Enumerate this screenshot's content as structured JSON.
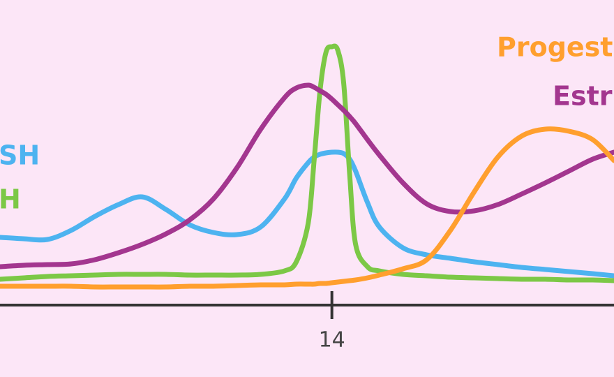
{
  "chart_data": {
    "type": "line",
    "x": [
      0,
      1,
      2,
      3,
      4,
      5,
      6,
      7,
      8,
      9,
      10,
      11,
      12,
      12.5,
      13,
      13.25,
      13.5,
      13.75,
      14,
      14.25,
      14.5,
      14.75,
      15,
      15.5,
      16,
      17,
      18,
      19,
      20,
      21,
      22,
      23,
      24,
      25,
      25.9
    ],
    "xlim": [
      0,
      25.9
    ],
    "xticks": [
      14
    ],
    "ylim": [
      0,
      100
    ],
    "series": [
      {
        "name": "SH",
        "color": "#4db3f0",
        "values": [
          24.25,
          23.75,
          23.5,
          26.75,
          31.75,
          36,
          38.75,
          34.25,
          28.75,
          26,
          25.25,
          28,
          38,
          45.5,
          51,
          53,
          54,
          54.5,
          54.75,
          54.75,
          54.25,
          52.25,
          48,
          36.75,
          28,
          20.5,
          18,
          16.75,
          15.5,
          14.5,
          13.5,
          12.75,
          12,
          11.25,
          10.5
        ]
      },
      {
        "name": "H",
        "color": "#7cc846",
        "values": [
          9.25,
          9.75,
          10.25,
          10.5,
          10.75,
          11,
          11,
          11,
          10.75,
          10.75,
          10.75,
          11,
          12.25,
          15.5,
          29.25,
          51.75,
          76.75,
          90.5,
          92.5,
          91.25,
          79.25,
          46.75,
          21.75,
          13.75,
          12.25,
          11,
          10.5,
          10,
          9.75,
          9.5,
          9.25,
          9.25,
          9,
          9,
          8.75
        ]
      },
      {
        "name": "Estr",
        "color": "#a3368f",
        "values": [
          13.75,
          14.25,
          14.5,
          14.75,
          16.25,
          18.75,
          21.75,
          25.5,
          30.5,
          38,
          49.25,
          63,
          74.25,
          77.75,
          78.75,
          78,
          76.75,
          75.5,
          73.75,
          71.75,
          69.75,
          67.5,
          65,
          59.25,
          53.75,
          43.75,
          36.25,
          33.5,
          33.75,
          36,
          39.75,
          43.75,
          48,
          52.25,
          54.75
        ]
      },
      {
        "name": "Progeste",
        "color": "#ff9f2e",
        "values": [
          6.75,
          6.75,
          6.75,
          6.75,
          6.5,
          6.5,
          6.5,
          6.5,
          6.75,
          6.75,
          7,
          7.25,
          7.25,
          7.5,
          7.5,
          7.5,
          7.75,
          7.75,
          8,
          8.25,
          8.5,
          8.75,
          9,
          9.75,
          10.75,
          13,
          16.25,
          26.75,
          40.5,
          53,
          60.5,
          63,
          62.25,
          59.25,
          51.75
        ]
      }
    ]
  }
}
